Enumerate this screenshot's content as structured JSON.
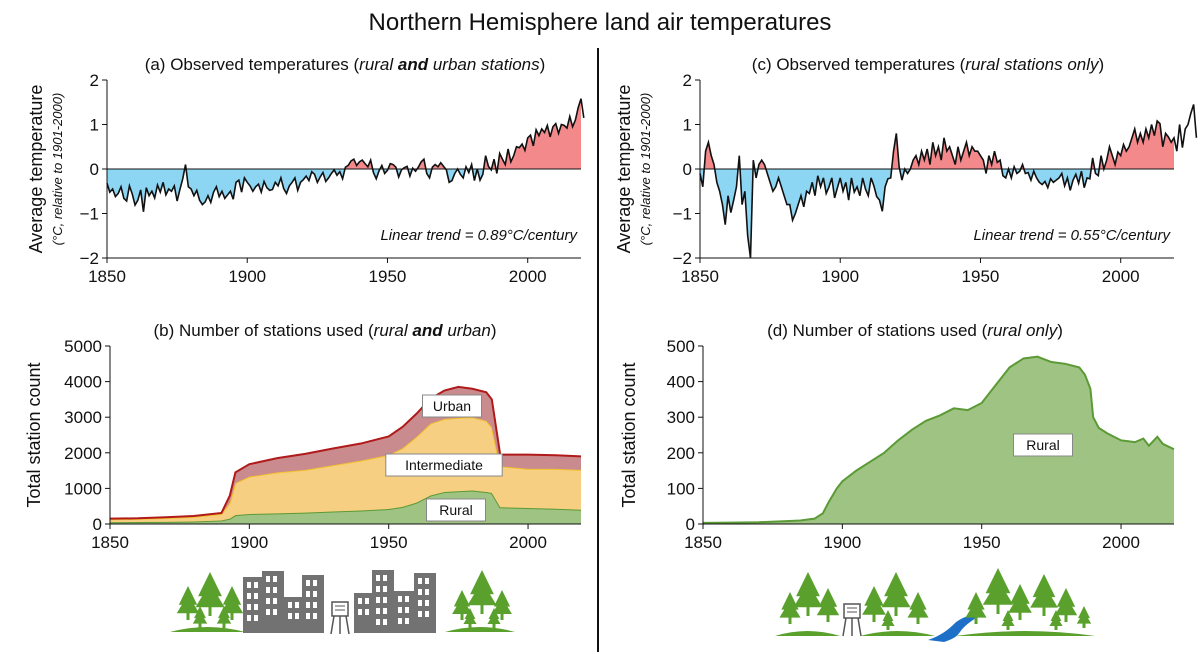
{
  "figure_title": "Northern Hemisphere land air temperatures",
  "colors": {
    "warm": "#f4898c",
    "cool": "#8cd6f4",
    "urban": "#c98b8e",
    "urban_line": "#b01a1a",
    "intermediate": "#f6cf82",
    "intermediate_line": "#f3c22e",
    "rural": "#9ec383",
    "rural_line": "#5b9a35",
    "icons_trees": "#5aa02c",
    "icons_buildings": "#727272",
    "icons_river": "#1e6fc8"
  },
  "icons": {
    "left": [
      "trees-icon",
      "buildings-icon",
      "weather-station-icon",
      "buildings-icon",
      "trees-icon"
    ],
    "right": [
      "trees-icon",
      "weather-station-icon",
      "trees-icon",
      "river-icon",
      "trees-icon"
    ]
  },
  "chart_data": [
    {
      "id": "a",
      "type": "area",
      "title_parts": [
        "(a) Observed temperatures (",
        "rural ",
        "and",
        " urban stations",
        ")"
      ],
      "ylabel": "Average temperature",
      "ylabel_sub": "(°C, relative to 1901-2000)",
      "xlim": [
        1850,
        2019
      ],
      "ylim": [
        -2,
        2
      ],
      "xticks": [
        "1850",
        "1900",
        "1950",
        "2000"
      ],
      "yticks": [
        "−2",
        "−1",
        "0",
        "1",
        "2"
      ],
      "annotation": "Linear trend = 0.89°C/century",
      "x_start": 1850,
      "x_step": 1,
      "values": [
        -0.32,
        -0.52,
        -0.45,
        -0.62,
        -0.55,
        -0.4,
        -0.66,
        -0.72,
        -0.38,
        -0.56,
        -0.81,
        -0.7,
        -0.47,
        -0.96,
        -0.42,
        -0.6,
        -0.5,
        -0.65,
        -0.36,
        -0.52,
        -0.3,
        -0.58,
        -0.45,
        -0.5,
        -0.38,
        -0.72,
        -0.46,
        -0.22,
        0.1,
        -0.4,
        -0.45,
        -0.6,
        -0.48,
        -0.7,
        -0.8,
        -0.74,
        -0.6,
        -0.75,
        -0.52,
        -0.4,
        -0.62,
        -0.5,
        -0.66,
        -0.58,
        -0.5,
        -0.68,
        -0.3,
        -0.25,
        -0.52,
        -0.2,
        -0.3,
        -0.38,
        -0.5,
        -0.4,
        -0.34,
        -0.52,
        -0.28,
        -0.42,
        -0.48,
        -0.46,
        -0.3,
        -0.38,
        -0.2,
        -0.44,
        -0.55,
        -0.38,
        -0.3,
        -0.2,
        -0.48,
        -0.3,
        -0.24,
        -0.16,
        -0.26,
        -0.06,
        -0.12,
        -0.3,
        -0.18,
        -0.08,
        -0.28,
        -0.2,
        -0.1,
        -0.02,
        -0.14,
        -0.06,
        -0.22,
        0.04,
        0.08,
        0.18,
        0.22,
        0.08,
        0.16,
        0.2,
        0.12,
        0.05,
        0.2,
        -0.08,
        -0.22,
        -0.04,
        0.08,
        -0.1,
        -0.03,
        0.12,
        0.1,
        0.04,
        -0.18,
        -0.02,
        0.03,
        0.06,
        -0.16,
        0.02,
        -0.05,
        0.04,
        0.16,
        0.22,
        -0.1,
        -0.2,
        0.04,
        0.1,
        0.05,
        0.14,
        0.06,
        -0.02,
        -0.3,
        -0.26,
        -0.1,
        0.0,
        -0.12,
        -0.2,
        0.05,
        -0.08,
        0.1,
        -0.26,
        0.0,
        -0.25,
        -0.12,
        0.3,
        0.06,
        -0.02,
        0.22,
        -0.1,
        0.35,
        0.22,
        0.1,
        0.45,
        0.16,
        0.3,
        0.5,
        0.48,
        0.56,
        0.42,
        0.7,
        0.76,
        0.52,
        0.88,
        0.75,
        0.9,
        0.82,
        0.98,
        0.72,
        0.95,
        1.02,
        0.8,
        1.0,
        0.98,
        0.92,
        1.18,
        0.95,
        1.1,
        1.38,
        1.58,
        1.15
      ]
    },
    {
      "id": "c",
      "type": "area",
      "title_parts": [
        "(c) Observed temperatures (",
        "rural stations only",
        ")"
      ],
      "ylabel": "Average temperature",
      "ylabel_sub": "(°C, relative to 1901-2000)",
      "xlim": [
        1850,
        2019
      ],
      "ylim": [
        -2,
        2
      ],
      "xticks": [
        "1850",
        "1900",
        "1950",
        "2000"
      ],
      "yticks": [
        "−2",
        "−1",
        "0",
        "1",
        "2"
      ],
      "annotation": "Linear trend = 0.55°C/century",
      "x_start": 1850,
      "x_step": 1,
      "values": [
        -0.1,
        -0.4,
        0.4,
        0.6,
        0.3,
        0.1,
        -0.3,
        -0.5,
        -0.8,
        -1.25,
        -0.6,
        -0.98,
        -0.7,
        -0.4,
        0.3,
        -0.8,
        -0.5,
        -1.5,
        -2.0,
        0.2,
        -0.2,
        0.1,
        0.2,
        0.1,
        -0.1,
        -0.3,
        -0.5,
        -0.4,
        -0.2,
        -0.4,
        -0.6,
        -0.8,
        -0.8,
        -1.15,
        -1.0,
        -0.8,
        -0.6,
        -0.85,
        -0.5,
        -0.55,
        -0.3,
        -0.6,
        -0.15,
        -0.4,
        -0.2,
        -0.55,
        -0.4,
        -0.2,
        -0.65,
        -0.42,
        -0.2,
        -0.5,
        -0.3,
        -0.7,
        -0.2,
        -0.52,
        -0.4,
        -0.6,
        -0.2,
        -0.45,
        -0.6,
        -0.2,
        -0.38,
        -0.62,
        -0.7,
        -0.95,
        -0.4,
        -0.22,
        -0.2,
        0.4,
        0.8,
        0.05,
        -0.25,
        0.0,
        -0.1,
        0.0,
        0.2,
        0.3,
        0.1,
        0.4,
        0.2,
        0.45,
        0.1,
        0.6,
        0.3,
        0.5,
        0.2,
        0.7,
        0.4,
        0.5,
        0.3,
        0.1,
        0.5,
        0.2,
        0.4,
        0.6,
        0.3,
        0.5,
        0.4,
        0.4,
        0.3,
        0.2,
        -0.1,
        0.3,
        0.1,
        0.4,
        0.15,
        0.2,
        -0.15,
        -0.2,
        0.0,
        -0.2,
        0.05,
        -0.1,
        -0.05,
        0.1,
        -0.1,
        -0.08,
        -0.25,
        -0.05,
        -0.2,
        -0.3,
        -0.35,
        -0.28,
        -0.42,
        -0.22,
        -0.3,
        -0.25,
        -0.2,
        -0.1,
        -0.38,
        -0.2,
        -0.48,
        -0.25,
        -0.12,
        -0.32,
        -0.05,
        -0.42,
        -0.2,
        -0.22,
        0.25,
        -0.1,
        -0.15,
        0.3,
        0.0,
        0.2,
        0.5,
        0.3,
        0.1,
        0.38,
        0.3,
        0.55,
        0.4,
        0.5,
        0.7,
        0.9,
        0.6,
        0.8,
        0.6,
        0.9,
        0.7,
        1.0,
        0.75,
        1.08,
        1.02,
        0.5,
        0.8,
        0.72,
        0.6,
        0.7,
        0.4,
        1.0,
        0.48,
        0.9,
        1.0,
        1.25,
        1.45,
        0.7
      ]
    },
    {
      "id": "b",
      "type": "area",
      "stacked": true,
      "title_parts": [
        "(b) Number of stations used (",
        "rural ",
        "and",
        " urban",
        ")"
      ],
      "ylabel": "Total station count",
      "xlim": [
        1850,
        2019
      ],
      "ylim": [
        0,
        5000
      ],
      "xticks": [
        "1850",
        "1900",
        "1950",
        "2000"
      ],
      "yticks": [
        "0",
        "1000",
        "2000",
        "3000",
        "4000",
        "5000"
      ],
      "series": [
        {
          "name": "Rural",
          "x": [
            1850,
            1860,
            1870,
            1880,
            1890,
            1893,
            1895,
            1900,
            1910,
            1920,
            1930,
            1940,
            1950,
            1955,
            1960,
            1965,
            1970,
            1975,
            1980,
            1985,
            1987,
            1990,
            2000,
            2010,
            2019
          ],
          "values": [
            50,
            55,
            60,
            70,
            100,
            150,
            250,
            280,
            300,
            320,
            350,
            380,
            420,
            480,
            600,
            800,
            900,
            920,
            940,
            900,
            870,
            470,
            450,
            430,
            400
          ]
        },
        {
          "name": "Intermediate",
          "x": [
            1850,
            1860,
            1870,
            1880,
            1890,
            1893,
            1895,
            1900,
            1910,
            1920,
            1930,
            1940,
            1950,
            1955,
            1960,
            1965,
            1970,
            1975,
            1980,
            1985,
            1987,
            1990,
            2000,
            2010,
            2019
          ],
          "values": [
            85,
            90,
            110,
            130,
            180,
            450,
            900,
            1050,
            1150,
            1200,
            1300,
            1400,
            1520,
            1650,
            1850,
            2020,
            2050,
            2060,
            2060,
            2000,
            1850,
            1150,
            1100,
            1120,
            1120
          ]
        },
        {
          "name": "Urban",
          "x": [
            1850,
            1860,
            1870,
            1880,
            1890,
            1893,
            1895,
            1900,
            1910,
            1920,
            1930,
            1940,
            1950,
            1955,
            1960,
            1965,
            1970,
            1975,
            1980,
            1985,
            1987,
            1990,
            2000,
            2010,
            2019
          ],
          "values": [
            15,
            15,
            20,
            25,
            30,
            200,
            300,
            350,
            400,
            450,
            470,
            480,
            520,
            600,
            650,
            700,
            800,
            870,
            800,
            800,
            780,
            330,
            400,
            380,
            380
          ]
        }
      ],
      "labels": [
        "Urban",
        "Intermediate",
        "Rural"
      ]
    },
    {
      "id": "d",
      "type": "area",
      "title_parts": [
        "(d) Number of stations used (",
        "rural only",
        ")"
      ],
      "ylabel": "Total station count",
      "xlim": [
        1850,
        2019
      ],
      "ylim": [
        0,
        500
      ],
      "xticks": [
        "1850",
        "1900",
        "1950",
        "2000"
      ],
      "yticks": [
        "0",
        "100",
        "200",
        "300",
        "400",
        "500"
      ],
      "series": [
        {
          "name": "Rural",
          "x": [
            1850,
            1860,
            1870,
            1880,
            1885,
            1890,
            1893,
            1895,
            1898,
            1900,
            1905,
            1910,
            1915,
            1920,
            1925,
            1930,
            1935,
            1940,
            1945,
            1950,
            1955,
            1960,
            1965,
            1970,
            1975,
            1980,
            1985,
            1987,
            1989,
            1990,
            1992,
            1995,
            2000,
            2005,
            2008,
            2010,
            2013,
            2015,
            2019
          ],
          "values": [
            3,
            4,
            5,
            8,
            10,
            15,
            30,
            60,
            100,
            120,
            150,
            175,
            200,
            235,
            265,
            290,
            305,
            325,
            320,
            340,
            390,
            440,
            465,
            470,
            455,
            450,
            440,
            420,
            380,
            300,
            270,
            255,
            235,
            230,
            240,
            220,
            245,
            225,
            210
          ]
        }
      ],
      "labels": [
        "Rural"
      ]
    }
  ]
}
